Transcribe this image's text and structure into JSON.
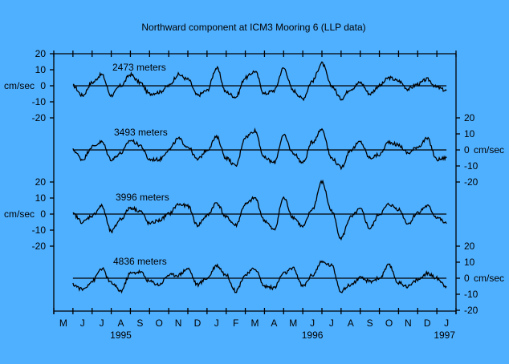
{
  "colors": {
    "background": "#4fb0ff",
    "ink": "#000000"
  },
  "chart_data": {
    "type": "line",
    "title": "Northward component at ICM3 Mooring 6 (LLP data)",
    "ylabel": "cm/sec",
    "xlabel": "",
    "x_unit": "months since 1 May 1995",
    "xlim": [
      0,
      21
    ],
    "month_labels": [
      "M",
      "J",
      "J",
      "A",
      "S",
      "O",
      "N",
      "D",
      "J",
      "F",
      "M",
      "A",
      "M",
      "J",
      "J",
      "A",
      "S",
      "O",
      "N",
      "D",
      "J"
    ],
    "year_labels": [
      {
        "label": "1995",
        "month": 3.5
      },
      {
        "label": "1996",
        "month": 13.5
      },
      {
        "label": "1997",
        "month": 20.4
      }
    ],
    "y_ticks": [
      "20",
      "10",
      "0",
      "-10",
      "-20"
    ],
    "ylim": [
      -20,
      20
    ],
    "grid": false,
    "x": [
      1.0,
      1.5,
      2.0,
      2.5,
      3.0,
      3.5,
      4.0,
      4.5,
      5.0,
      5.5,
      6.0,
      6.5,
      7.0,
      7.5,
      8.0,
      8.5,
      9.0,
      9.5,
      10.0,
      10.5,
      11.0,
      11.5,
      12.0,
      12.5,
      13.0,
      13.5,
      14.0,
      14.5,
      15.0,
      15.5,
      16.0,
      16.5,
      17.0,
      17.5,
      18.0,
      18.5,
      19.0,
      19.5,
      20.0,
      20.5
    ],
    "series": [
      {
        "name": "2473 meters",
        "axis_side": "left",
        "values": [
          0,
          -6,
          2,
          7,
          -6,
          0,
          7,
          2,
          -5,
          -4,
          0,
          7,
          4,
          -6,
          -3,
          11,
          -4,
          -7,
          5,
          9,
          -5,
          -3,
          11,
          -3,
          -8,
          3,
          14,
          0,
          -8,
          -2,
          2,
          -5,
          0,
          5,
          3,
          -2,
          1,
          4,
          -1,
          -3
        ]
      },
      {
        "name": "3493 meters",
        "axis_side": "right",
        "values": [
          0,
          -6,
          2,
          5,
          -6,
          -2,
          6,
          3,
          -6,
          -6,
          0,
          7,
          2,
          -6,
          0,
          8,
          -5,
          -10,
          8,
          12,
          -5,
          -8,
          9,
          -2,
          -8,
          5,
          13,
          -5,
          -11,
          0,
          5,
          -5,
          -3,
          5,
          3,
          -2,
          2,
          7,
          -6,
          -5
        ]
      },
      {
        "name": "3996 meters",
        "axis_side": "left",
        "values": [
          0,
          -5,
          -1,
          5,
          -11,
          -3,
          4,
          2,
          -6,
          -4,
          0,
          6,
          5,
          -7,
          -1,
          7,
          -2,
          -7,
          6,
          10,
          -4,
          -10,
          10,
          -2,
          -8,
          3,
          20,
          2,
          -15,
          -2,
          3,
          -9,
          0,
          6,
          3,
          -6,
          1,
          5,
          -2,
          -6
        ]
      },
      {
        "name": "4836 meters",
        "axis_side": "right",
        "values": [
          -4,
          -7,
          -2,
          6,
          -3,
          -8,
          3,
          4,
          -2,
          -4,
          2,
          2,
          6,
          -4,
          0,
          8,
          2,
          -8,
          2,
          6,
          -5,
          -6,
          3,
          6,
          -5,
          2,
          10,
          8,
          -8,
          -4,
          0,
          -2,
          0,
          8,
          -3,
          -5,
          -1,
          3,
          0,
          -5
        ]
      }
    ]
  }
}
